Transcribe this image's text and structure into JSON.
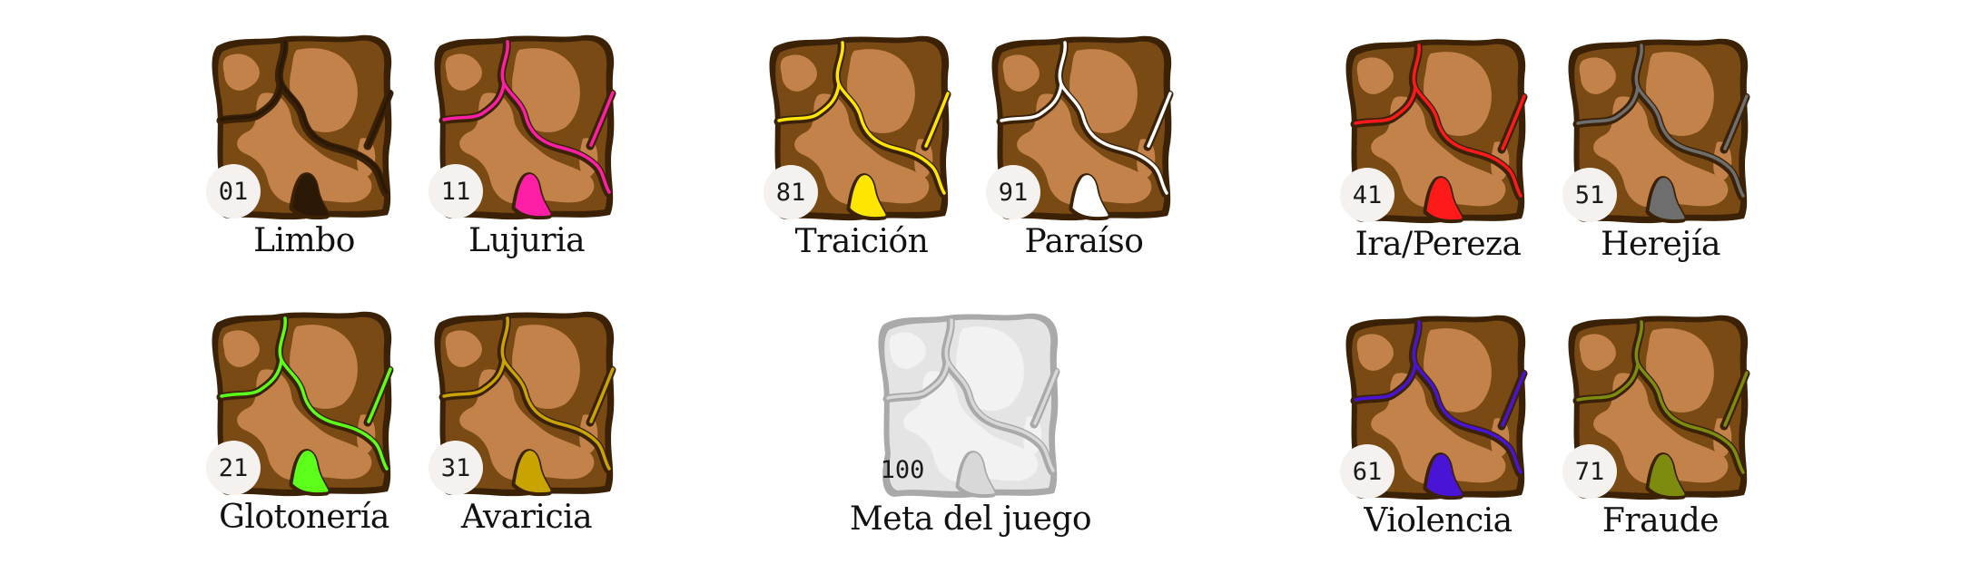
{
  "tiles": [
    {
      "number": "01",
      "label": "Limbo",
      "crack_color": "#2b1806"
    },
    {
      "number": "11",
      "label": "Lujuria",
      "crack_color": "#ff1fa6"
    },
    {
      "number": "81",
      "label": "Traición",
      "crack_color": "#ffe600"
    },
    {
      "number": "91",
      "label": "Paraíso",
      "crack_color": "#ffffff"
    },
    {
      "number": "41",
      "label": "Ira/Pereza",
      "crack_color": "#ff1a1a"
    },
    {
      "number": "51",
      "label": "Herejía",
      "crack_color": "#6e6e6e"
    },
    {
      "number": "21",
      "label": "Glotonería",
      "crack_color": "#5cff1a"
    },
    {
      "number": "31",
      "label": "Avaricia",
      "crack_color": "#c9a300"
    },
    {
      "number": "100",
      "label": "Meta del juego",
      "crack_color": "#d8d8d8"
    },
    {
      "number": "61",
      "label": "Violencia",
      "crack_color": "#4a14d6"
    },
    {
      "number": "71",
      "label": "Fraude",
      "crack_color": "#7d8c0f"
    }
  ],
  "palette": {
    "outline": "#3b2207",
    "ground": "#7a4a15",
    "light": "#c2824a",
    "goal_outline": "#a9a9a9",
    "goal_ground": "#e4e4e4",
    "goal_light": "#f2f2f2"
  }
}
